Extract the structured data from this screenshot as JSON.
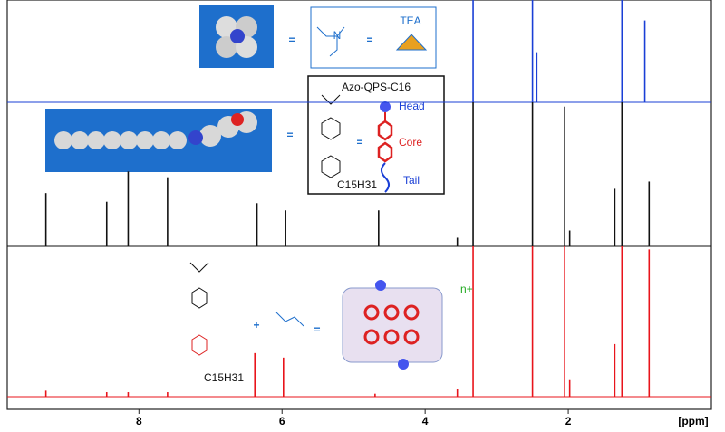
{
  "chart_data": {
    "type": "spectrum",
    "x_label": "[ppm]",
    "xlim": [
      9.84,
      0
    ],
    "xticks": [
      8,
      6,
      4,
      2
    ],
    "series": [
      {
        "color": "#1a3fd6",
        "x": [
          3.33,
          2.5,
          2.44,
          1.25,
          0.93
        ],
        "values": [
          100,
          100,
          49,
          100,
          80
        ]
      },
      {
        "color": "#111111",
        "x": [
          9.3,
          8.45,
          8.15,
          7.6,
          6.35,
          5.95,
          4.65,
          3.55,
          3.33,
          2.5,
          2.05,
          1.98,
          1.35,
          1.25,
          0.87
        ],
        "values": [
          37,
          31,
          52,
          48,
          30,
          25,
          25,
          6,
          100,
          100,
          97,
          11,
          40,
          100,
          45
        ]
      },
      {
        "color": "#e8141b",
        "x": [
          9.3,
          8.45,
          8.15,
          7.6,
          6.38,
          5.98,
          4.7,
          3.55,
          3.33,
          2.5,
          2.05,
          1.98,
          1.35,
          1.25,
          0.87
        ],
        "values": [
          4,
          3,
          3,
          3,
          29,
          26,
          2,
          5,
          100,
          100,
          100,
          11,
          35,
          100,
          98
        ]
      }
    ],
    "annotations": {
      "tea": "TEA",
      "compound": "Azo-QPS-C16",
      "head": "Head",
      "core": "Core",
      "tail": "Tail",
      "charge": "n+",
      "chain_top": "C15H31",
      "chain_bottom": "C15H31"
    }
  }
}
